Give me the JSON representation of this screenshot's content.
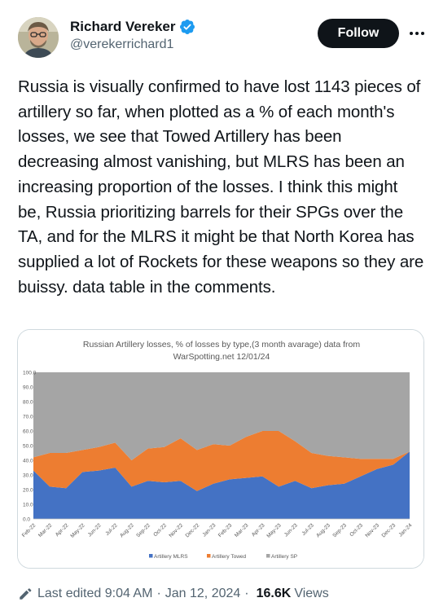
{
  "author": {
    "display_name": "Richard Vereker",
    "handle": "@verekerrichard1"
  },
  "actions": {
    "follow_label": "Follow"
  },
  "tweet": {
    "text": "Russia is visually confirmed to have lost 1143 pieces of artillery so far, when plotted as a % of each month's losses, we see that Towed Artillery has been decreasing almost vanishing, but MLRS has been an increasing proportion of the losses. I think this might be, Russia prioritizing barrels for their SPGs over the TA, and for the MLRS it might be that North Korea has supplied a lot of Rockets for these weapons so they are buissy. data table in the comments."
  },
  "footer": {
    "edited": "Last edited 9:04 AM",
    "date": "Jan 12, 2024",
    "views_count": "16.6K",
    "views_label": "Views",
    "separator": "·"
  },
  "colors": {
    "mlrs": "#4472c4",
    "towed": "#ed7d31",
    "sp": "#a5a5a5",
    "verified": "#1d9bf0"
  },
  "chart_data": {
    "type": "area",
    "stacked": true,
    "title_line1": "Russian Artillery losses, % of losses by type,(3 month avarage) data from",
    "title_line2": "WarSpotting.net 12/01/24",
    "categories": [
      "Feb-22",
      "Mar-22",
      "Apr-22",
      "May-22",
      "Jun-22",
      "Jul-22",
      "Aug-22",
      "Sep-22",
      "Oct-22",
      "Nov-22",
      "Dec-22",
      "Jan-23",
      "Feb-23",
      "Mar-23",
      "Apr-23",
      "May-23",
      "Jun-23",
      "Jul-23",
      "Aug-23",
      "Sep-23",
      "Oct-23",
      "Nov-23",
      "Dec-23",
      "Jan-24"
    ],
    "y_ticks": [
      "0.0",
      "10.0",
      "20.0",
      "30.0",
      "40.0",
      "50.0",
      "60.0",
      "70.0",
      "80.0",
      "90.0",
      "100.0"
    ],
    "ylim": [
      0,
      100
    ],
    "series": [
      {
        "name": "Artillery MLRS",
        "values": [
          33,
          22,
          21,
          32,
          33,
          35,
          22,
          26,
          25,
          26,
          19,
          24,
          27,
          28,
          29,
          22,
          26,
          21,
          23,
          24,
          29,
          34,
          37,
          46
        ]
      },
      {
        "name": "Artillery Towed",
        "values": [
          9,
          23,
          24,
          15,
          16,
          17,
          18,
          22,
          24,
          29,
          28,
          27,
          23,
          28,
          31,
          38,
          27,
          24,
          20,
          18,
          12,
          7,
          4,
          0
        ]
      },
      {
        "name": "Artillery SP",
        "values": [
          58,
          55,
          55,
          53,
          51,
          48,
          60,
          52,
          51,
          45,
          53,
          49,
          50,
          44,
          40,
          40,
          47,
          55,
          57,
          58,
          59,
          59,
          59,
          54
        ]
      }
    ],
    "legend_position": "bottom",
    "grid": false
  }
}
